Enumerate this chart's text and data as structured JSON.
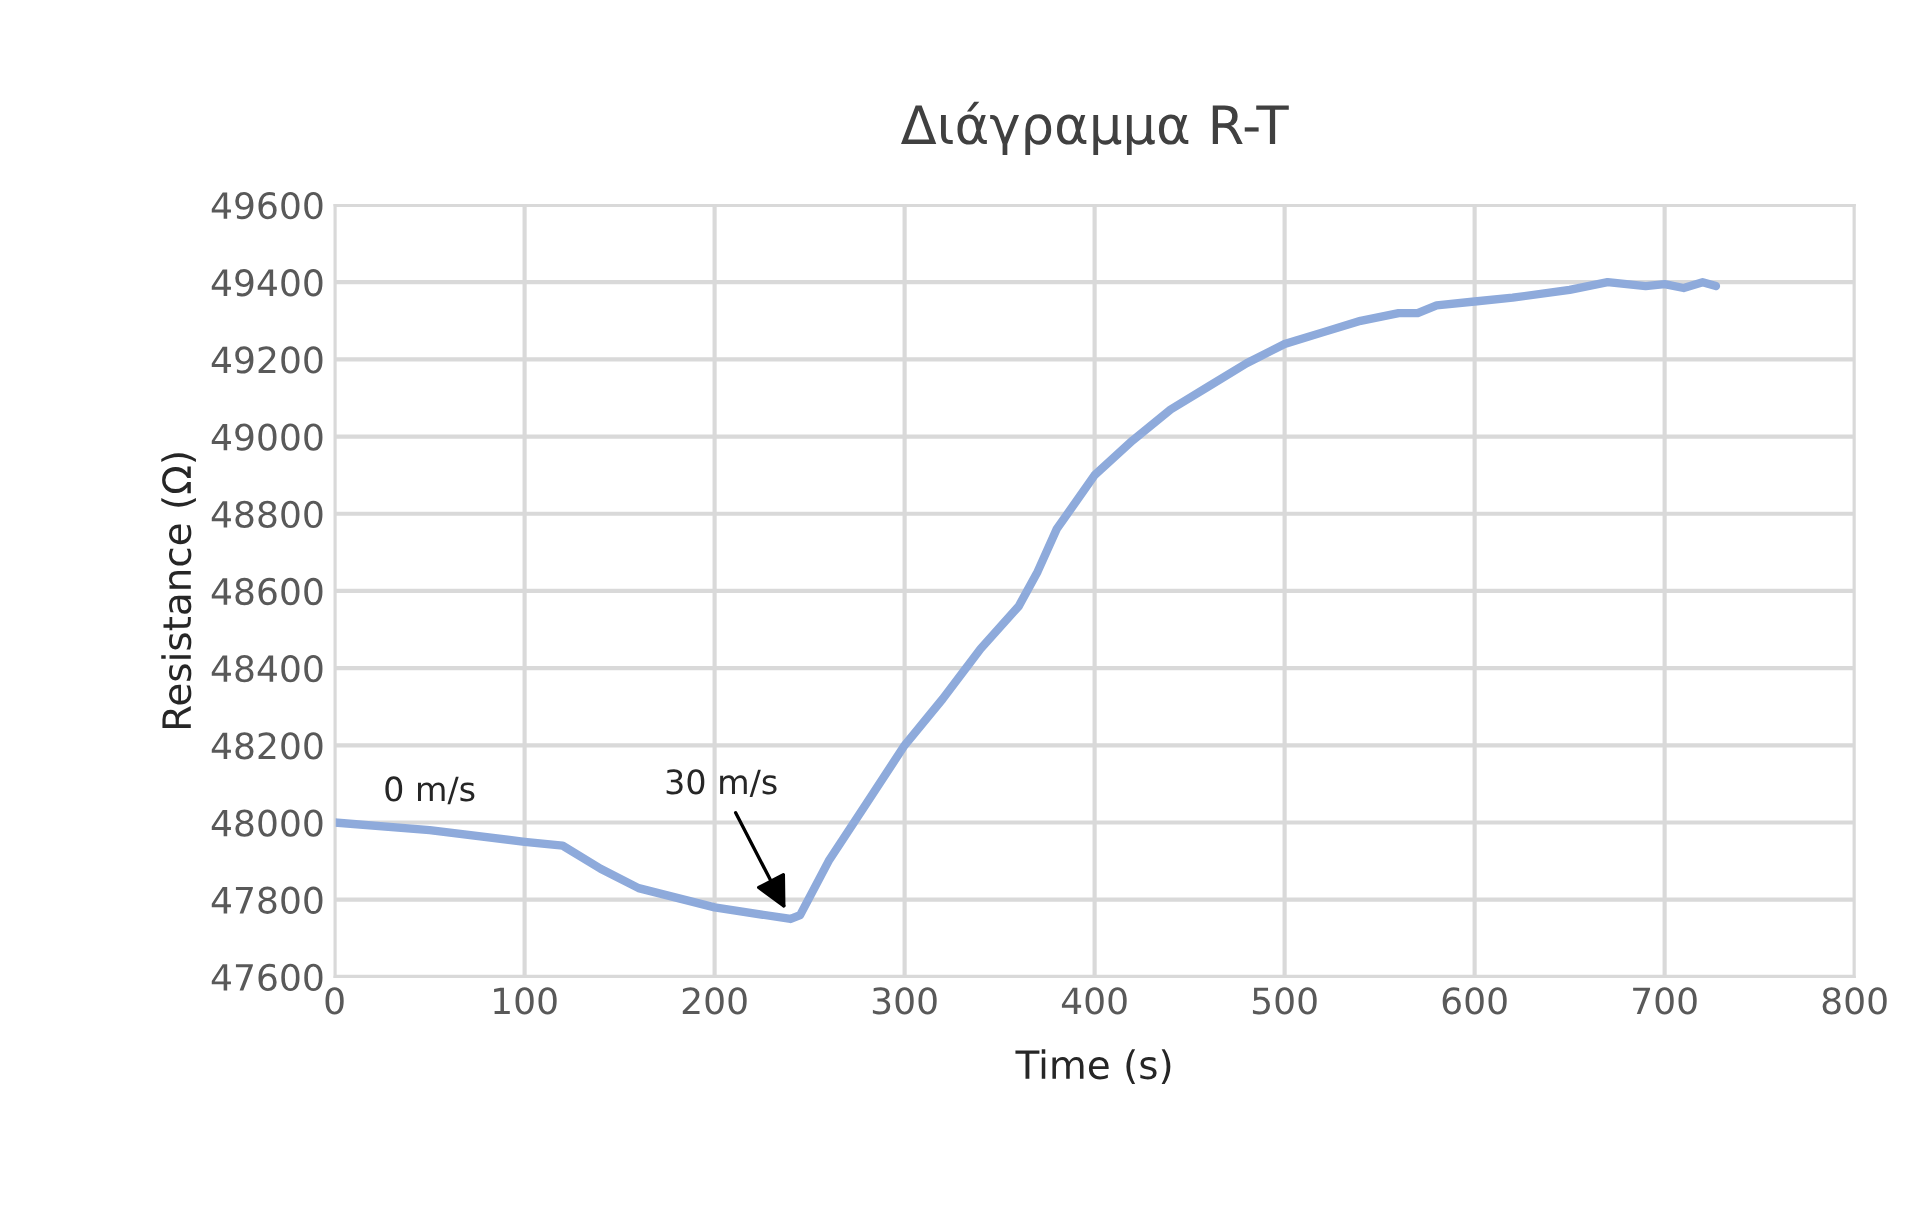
{
  "chart_data": {
    "type": "line",
    "title": "Διάγραμμα R-T",
    "xlabel": "Time (s)",
    "ylabel": "Resistance (Ω)",
    "xlim": [
      0,
      800
    ],
    "xticks": [
      0,
      100,
      200,
      300,
      400,
      500,
      600,
      700,
      800
    ],
    "ylim": [
      47600,
      49600
    ],
    "yticks": [
      47600,
      47800,
      48000,
      48200,
      48400,
      48600,
      48800,
      49000,
      49200,
      49400,
      49600
    ],
    "grid": true,
    "legend": false,
    "annotations": [
      "0 m/s",
      {
        "text": "30 m/s",
        "x": 240,
        "y": 47750
      }
    ],
    "series": [
      {
        "color": "#8eaadb",
        "x": [
          0,
          50,
          100,
          120,
          140,
          160,
          200,
          240,
          245,
          260,
          280,
          300,
          320,
          340,
          360,
          370,
          380,
          400,
          420,
          440,
          460,
          480,
          500,
          520,
          540,
          560,
          570,
          580,
          600,
          620,
          650,
          670,
          690,
          700,
          710,
          720,
          727
        ],
        "values": [
          48000,
          47980,
          47950,
          47940,
          47880,
          47830,
          47780,
          47750,
          47760,
          47900,
          48050,
          48200,
          48320,
          48450,
          48560,
          48650,
          48760,
          48900,
          48990,
          49070,
          49130,
          49190,
          49240,
          49270,
          49300,
          49320,
          49320,
          49340,
          49350,
          49360,
          49380,
          49400,
          49390,
          49395,
          49385,
          49400,
          49390
        ]
      }
    ]
  }
}
